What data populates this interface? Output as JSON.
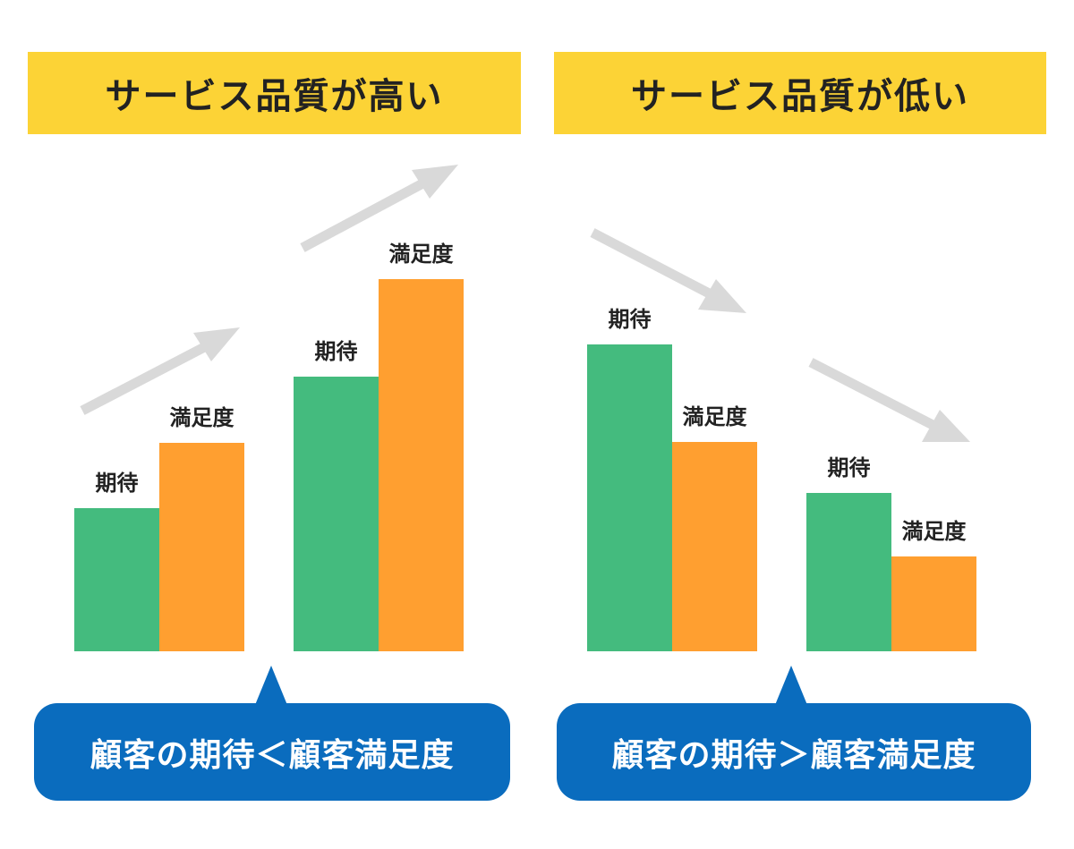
{
  "colors": {
    "title_bg": "#FCD336",
    "expectation": "#44BB7E",
    "satisfaction": "#FF9F30",
    "arrow": "#D9D9D9",
    "callout": "#0A6CBE"
  },
  "left": {
    "title": "サービス品質が高い",
    "groups": [
      {
        "expectation_label": "期待",
        "satisfaction_label": "満足度",
        "expectation": 160,
        "satisfaction": 233
      },
      {
        "expectation_label": "期待",
        "satisfaction_label": "満足度",
        "expectation": 307,
        "satisfaction": 416
      }
    ],
    "callout": "顧客の期待＜顧客満足度"
  },
  "right": {
    "title": "サービス品質が低い",
    "groups": [
      {
        "expectation_label": "期待",
        "satisfaction_label": "満足度",
        "expectation": 343,
        "satisfaction": 234
      },
      {
        "expectation_label": "期待",
        "satisfaction_label": "満足度",
        "expectation": 177,
        "satisfaction": 106
      }
    ],
    "callout": "顧客の期待＞顧客満足度"
  }
}
